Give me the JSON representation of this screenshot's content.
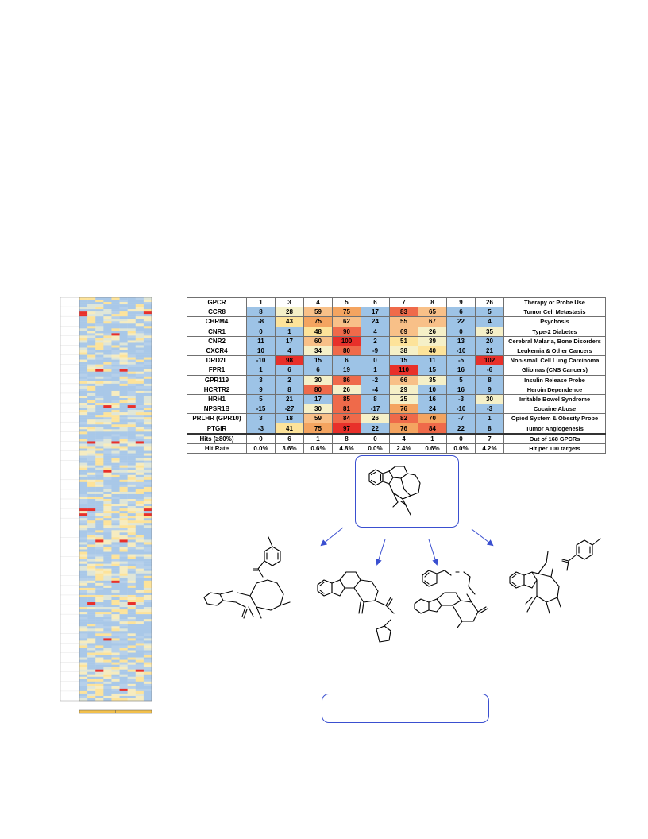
{
  "colors": {
    "blue": "#9dc3e6",
    "light": "#f5f0c8",
    "yellow": "#fde39a",
    "orange": "#f4a460",
    "red": "#e8302a",
    "accent": "#3a4fd0",
    "heatmap_bar": "#f2c04c"
  },
  "table": {
    "header": {
      "gpcr": "GPCR",
      "compounds": [
        "1",
        "3",
        "4",
        "5",
        "6",
        "7",
        "8",
        "9",
        "26"
      ],
      "therapy": "Therapy or Probe Use"
    },
    "rows": [
      {
        "name": "CCR8",
        "values": [
          "8",
          "28",
          "59",
          "75",
          "17",
          "83",
          "65",
          "6",
          "5"
        ],
        "therapy": "Tumor Cell Metastasis"
      },
      {
        "name": "CHRM4",
        "values": [
          "-8",
          "43",
          "75",
          "62",
          "24",
          "55",
          "67",
          "22",
          "4"
        ],
        "therapy": "Psychosis"
      },
      {
        "name": "CNR1",
        "values": [
          "0",
          "1",
          "48",
          "90",
          "4",
          "69",
          "26",
          "0",
          "35"
        ],
        "therapy": "Type-2 Diabetes"
      },
      {
        "name": "CNR2",
        "values": [
          "11",
          "17",
          "60",
          "100",
          "2",
          "51",
          "39",
          "13",
          "20"
        ],
        "therapy": "Cerebral Malaria, Bone Disorders"
      },
      {
        "name": "CXCR4",
        "values": [
          "10",
          "4",
          "34",
          "80",
          "-9",
          "38",
          "40",
          "-10",
          "21"
        ],
        "therapy": "Leukemia & Other Cancers"
      },
      {
        "name": "DRD2L",
        "values": [
          "-10",
          "98",
          "15",
          "6",
          "0",
          "15",
          "11",
          "-5",
          "102"
        ],
        "therapy": "Non-small Cell Lung Carcinoma"
      },
      {
        "name": "FPR1",
        "values": [
          "1",
          "6",
          "6",
          "19",
          "1",
          "110",
          "15",
          "16",
          "-6"
        ],
        "therapy": "Gliomas (CNS Cancers)"
      },
      {
        "name": "GPR119",
        "values": [
          "3",
          "2",
          "30",
          "86",
          "-2",
          "66",
          "35",
          "5",
          "8"
        ],
        "therapy": "Insulin Release Probe"
      },
      {
        "name": "HCRTR2",
        "values": [
          "9",
          "8",
          "80",
          "26",
          "-4",
          "29",
          "10",
          "16",
          "9"
        ],
        "therapy": "Heroin Dependence"
      },
      {
        "name": "HRH1",
        "values": [
          "5",
          "21",
          "17",
          "85",
          "8",
          "25",
          "16",
          "-3",
          "30"
        ],
        "therapy": "Irritable Bowel Syndrome"
      },
      {
        "name": "NPSR1B",
        "values": [
          "-15",
          "-27",
          "30",
          "81",
          "-17",
          "76",
          "24",
          "-10",
          "-3"
        ],
        "therapy": "Cocaine Abuse"
      },
      {
        "name": "PRLHR (GPR10)",
        "values": [
          "3",
          "18",
          "59",
          "84",
          "26",
          "82",
          "70",
          "-7",
          "1"
        ],
        "therapy": "Opiod System & Obesity Probe"
      },
      {
        "name": "PTGIR",
        "values": [
          "-3",
          "41",
          "75",
          "97",
          "22",
          "76",
          "84",
          "22",
          "8"
        ],
        "therapy": "Tumor Angiogenesis"
      }
    ],
    "hits": {
      "label": "Hits (≥80%)",
      "values": [
        "0",
        "6",
        "1",
        "8",
        "0",
        "4",
        "1",
        "0",
        "7"
      ],
      "note": "Out of 168 GPCRs"
    },
    "hit_rate": {
      "label": "Hit Rate",
      "values": [
        "0.0%",
        "3.6%",
        "0.6%",
        "4.8%",
        "0.0%",
        "2.4%",
        "0.6%",
        "0.0%",
        "4.2%"
      ],
      "note": "Hit per 100 targets"
    }
  },
  "heatmap": {
    "columns": 9,
    "rows": 168,
    "hot_rows": {
      "6": [
        0,
        8
      ],
      "7": [
        0
      ],
      "15": [
        4
      ],
      "30": [
        2,
        5
      ],
      "45": [
        3,
        6
      ],
      "60": [
        1,
        4,
        7
      ],
      "72": [
        3
      ],
      "88": [
        0,
        1,
        8
      ],
      "90": [
        0,
        8
      ],
      "101": [
        2,
        5
      ],
      "118": [
        4
      ],
      "127": [
        1,
        6
      ],
      "142": [
        3
      ],
      "155": [
        2,
        7
      ],
      "163": [
        5
      ]
    }
  }
}
